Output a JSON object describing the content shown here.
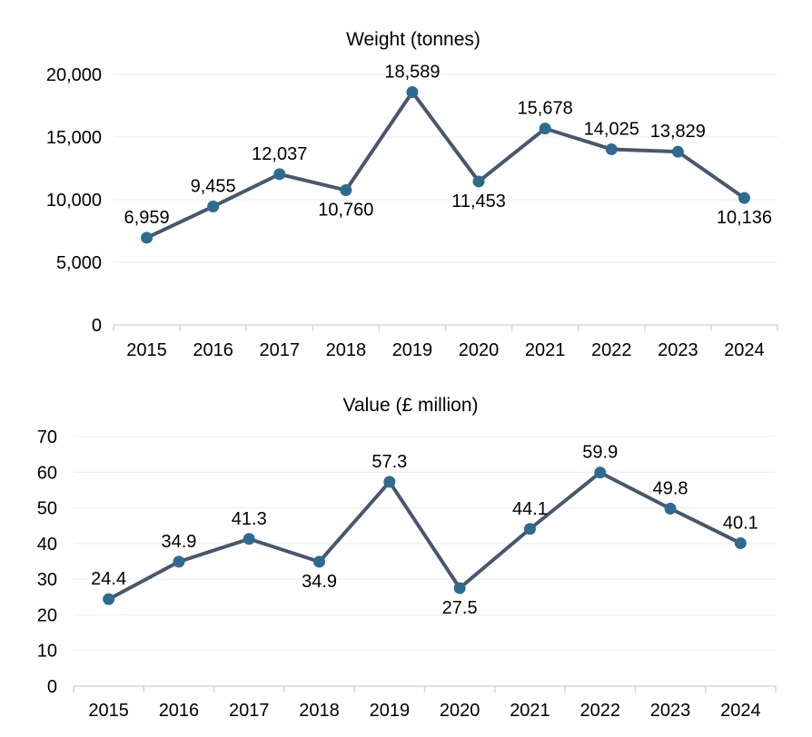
{
  "styles": {
    "background": "#ffffff",
    "text_color": "#000000",
    "gridline_color": "#ebebeb",
    "axis_color": "#d6d6d6",
    "line_color": "#47586e",
    "marker_color": "#2e6b8e"
  },
  "chart_data": [
    {
      "type": "line",
      "title": "Weight (tonnes)",
      "categories": [
        "2015",
        "2016",
        "2017",
        "2018",
        "2019",
        "2020",
        "2021",
        "2022",
        "2023",
        "2024"
      ],
      "values": [
        6959,
        9455,
        12037,
        10760,
        18589,
        11453,
        15678,
        14025,
        13829,
        10136
      ],
      "data_labels": [
        "6,959",
        "9,455",
        "12,037",
        "10,760",
        "18,589",
        "11,453",
        "15,678",
        "14,025",
        "13,829",
        "10,136"
      ],
      "label_positions": [
        "above",
        "above",
        "above",
        "below",
        "above",
        "below",
        "above",
        "above",
        "above",
        "below"
      ],
      "xlabel": "",
      "ylabel": "",
      "ylim": [
        0,
        20000
      ],
      "y_tick_interval": 5000,
      "y_tick_labels": [
        "0",
        "5,000",
        "10,000",
        "15,000",
        "20,000"
      ],
      "grid": "horizontal",
      "legend": "none"
    },
    {
      "type": "line",
      "title": "Value (£ million)",
      "categories": [
        "2015",
        "2016",
        "2017",
        "2018",
        "2019",
        "2020",
        "2021",
        "2022",
        "2023",
        "2024"
      ],
      "values": [
        24.4,
        34.9,
        41.3,
        34.9,
        57.3,
        27.5,
        44.1,
        59.9,
        49.8,
        40.1
      ],
      "data_labels": [
        "24.4",
        "34.9",
        "41.3",
        "34.9",
        "57.3",
        "27.5",
        "44.1",
        "59.9",
        "49.8",
        "40.1"
      ],
      "label_positions": [
        "above",
        "above",
        "above",
        "below",
        "above",
        "below",
        "above",
        "above",
        "above",
        "above"
      ],
      "xlabel": "",
      "ylabel": "",
      "ylim": [
        0,
        70
      ],
      "y_tick_interval": 10,
      "y_tick_labels": [
        "0",
        "10",
        "20",
        "30",
        "40",
        "50",
        "60",
        "70"
      ],
      "grid": "horizontal",
      "legend": "none"
    }
  ]
}
